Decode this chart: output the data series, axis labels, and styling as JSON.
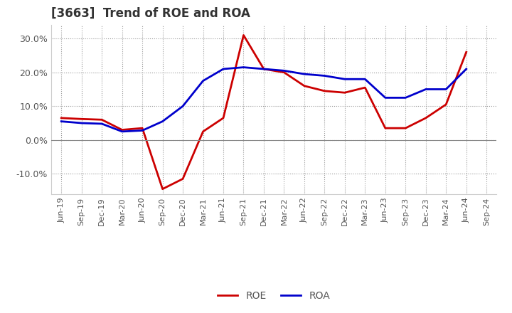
{
  "title": "[3663]  Trend of ROE and ROA",
  "x_labels": [
    "Jun-19",
    "Sep-19",
    "Dec-19",
    "Mar-20",
    "Jun-20",
    "Sep-20",
    "Dec-20",
    "Mar-21",
    "Jun-21",
    "Sep-21",
    "Dec-21",
    "Mar-22",
    "Jun-22",
    "Sep-22",
    "Dec-22",
    "Mar-23",
    "Jun-23",
    "Sep-23",
    "Dec-23",
    "Mar-24",
    "Jun-24",
    "Sep-24"
  ],
  "roe": [
    6.5,
    6.2,
    6.0,
    3.0,
    3.5,
    -14.5,
    -11.5,
    2.5,
    6.5,
    31.0,
    21.0,
    20.0,
    16.0,
    14.5,
    14.0,
    15.5,
    3.5,
    3.5,
    6.5,
    10.5,
    26.0,
    null
  ],
  "roa": [
    5.5,
    5.0,
    4.8,
    2.5,
    2.8,
    5.5,
    10.0,
    17.5,
    21.0,
    21.5,
    21.0,
    20.5,
    19.5,
    19.0,
    18.0,
    18.0,
    12.5,
    12.5,
    15.0,
    15.0,
    21.0,
    null
  ],
  "roe_color": "#cc0000",
  "roa_color": "#0000cc",
  "ylim": [
    -16,
    34
  ],
  "yticks": [
    -10,
    0,
    10,
    20,
    30
  ],
  "background_color": "#ffffff",
  "grid_color": "#999999",
  "title_color": "#333333",
  "title_fontsize": 12,
  "axis_label_color": "#555555",
  "linewidth": 2.0,
  "legend_fontsize": 10
}
